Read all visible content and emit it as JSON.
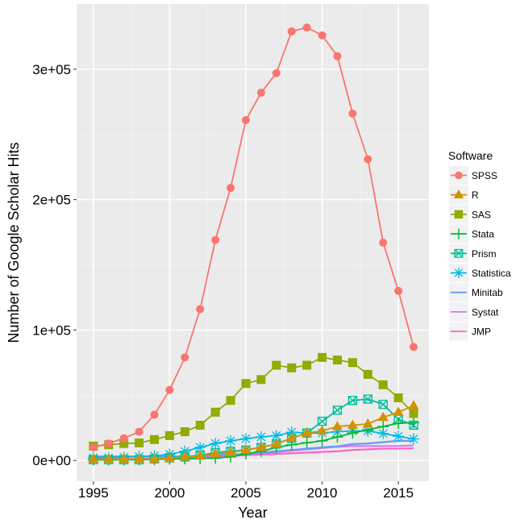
{
  "chart_data": {
    "type": "line",
    "title": "",
    "xlabel": "Year",
    "ylabel": "Number of Google Scholar Hits",
    "xlim": [
      1993.9,
      2017.0
    ],
    "ylim": [
      -16000,
      350000
    ],
    "x_ticks": [
      1995,
      2000,
      2005,
      2010,
      2015
    ],
    "x_tick_labels": [
      "1995",
      "2000",
      "2005",
      "2010",
      "2015"
    ],
    "y_ticks": [
      0,
      100000,
      200000,
      300000
    ],
    "y_tick_labels": [
      "0e+00",
      "1e+05",
      "2e+05",
      "3e+05"
    ],
    "grid": true,
    "legend": {
      "title": "Software",
      "placement": "right"
    },
    "x": [
      1995,
      1996,
      1997,
      1998,
      1999,
      2000,
      2001,
      2002,
      2003,
      2004,
      2005,
      2006,
      2007,
      2008,
      2009,
      2010,
      2011,
      2012,
      2013,
      2014,
      2015,
      2016
    ],
    "series": [
      {
        "name": "SPSS",
        "color": "#F8766D",
        "marker": "circle",
        "values": [
          10000,
          13000,
          17000,
          22000,
          35000,
          54000,
          79000,
          116000,
          169000,
          209000,
          261000,
          282000,
          297000,
          329000,
          332000,
          326000,
          310000,
          266000,
          231000,
          167000,
          130000,
          87000
        ]
      },
      {
        "name": "R",
        "color": "#D39200",
        "marker": "triangle",
        "values": [
          1000,
          1000,
          1000,
          1000,
          1000,
          1500,
          2700,
          3500,
          5000,
          6000,
          8000,
          10000,
          12600,
          17000,
          21000,
          22700,
          26000,
          27000,
          28000,
          33000,
          37000,
          42000
        ]
      },
      {
        "name": "SAS",
        "color": "#93AA00",
        "marker": "square",
        "values": [
          11000,
          12000,
          13000,
          13400,
          16000,
          19000,
          22000,
          27000,
          37000,
          46000,
          59000,
          62000,
          73000,
          71000,
          73000,
          79000,
          77000,
          75000,
          66000,
          58000,
          48000,
          36000
        ]
      },
      {
        "name": "Stata",
        "color": "#00BA38",
        "marker": "plus",
        "values": [
          500,
          500,
          500,
          500,
          700,
          1000,
          1200,
          1500,
          1800,
          2700,
          5000,
          7000,
          10000,
          12000,
          13500,
          15000,
          18000,
          21000,
          23500,
          26000,
          28500,
          29000
        ]
      },
      {
        "name": "Prism",
        "color": "#00C19F",
        "marker": "square-cross",
        "values": [
          600,
          600,
          600,
          600,
          1200,
          2000,
          2700,
          4000,
          6000,
          7000,
          8000,
          10000,
          12600,
          17000,
          21000,
          30000,
          38500,
          46000,
          47000,
          43000,
          31500,
          27000
        ]
      },
      {
        "name": "Statistica",
        "color": "#00B9E3",
        "marker": "asterisk",
        "values": [
          2000,
          2000,
          2500,
          3000,
          3500,
          4700,
          7000,
          10000,
          13000,
          15000,
          16700,
          18000,
          19000,
          21600,
          21000,
          21000,
          22000,
          22600,
          22600,
          20600,
          18500,
          16500
        ]
      },
      {
        "name": "Minitab",
        "color": "#619CFF",
        "marker": "none",
        "values": [
          3000,
          3000,
          3000,
          3000,
          3000,
          3000,
          3200,
          3500,
          4000,
          4300,
          5000,
          6000,
          7000,
          8000,
          9000,
          10000,
          10800,
          12500,
          13000,
          14000,
          15000,
          15000
        ]
      },
      {
        "name": "Systat",
        "color": "#DB72FB",
        "marker": "none",
        "values": [
          3000,
          3000,
          3000,
          3000,
          3000,
          3000,
          3000,
          3500,
          4000,
          4500,
          5000,
          5500,
          6500,
          7500,
          8500,
          9500,
          10500,
          11000,
          11000,
          11000,
          11000,
          11500
        ]
      },
      {
        "name": "JMP",
        "color": "#FF61C3",
        "marker": "none",
        "values": [
          500,
          700,
          1000,
          1200,
          1500,
          1800,
          2000,
          2500,
          3000,
          3500,
          4000,
          4500,
          5000,
          5500,
          6000,
          6500,
          7000,
          8000,
          8500,
          9000,
          9000,
          9300
        ]
      }
    ]
  }
}
